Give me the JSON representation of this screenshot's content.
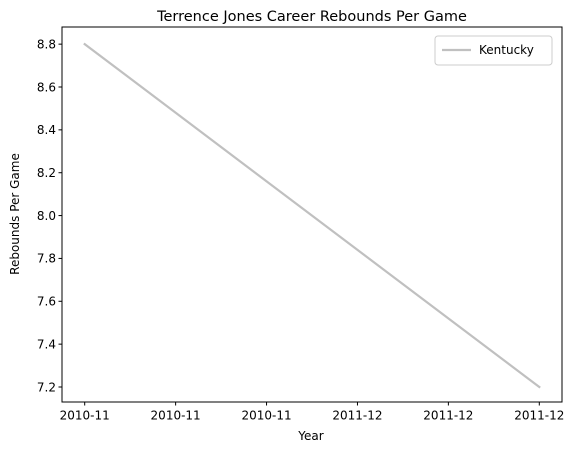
{
  "chart_data": {
    "type": "line",
    "title": "Terrence Jones Career Rebounds Per Game",
    "xlabel": "Year",
    "ylabel": "Rebounds Per Game",
    "x": [
      "2010-11",
      "2011-12"
    ],
    "x_tick_labels": [
      "2010-11",
      "2010-11",
      "2010-11",
      "2011-12",
      "2011-12",
      "2011-12"
    ],
    "series": [
      {
        "name": "Kentucky",
        "values": [
          8.8,
          7.2
        ],
        "color": "#c0c0c0"
      }
    ],
    "ylim": [
      7.13,
      8.88
    ],
    "y_ticks": [
      7.2,
      7.4,
      7.6,
      7.8,
      8.0,
      8.2,
      8.4,
      8.6,
      8.8
    ],
    "grid": false,
    "legend_position": "top-right"
  }
}
